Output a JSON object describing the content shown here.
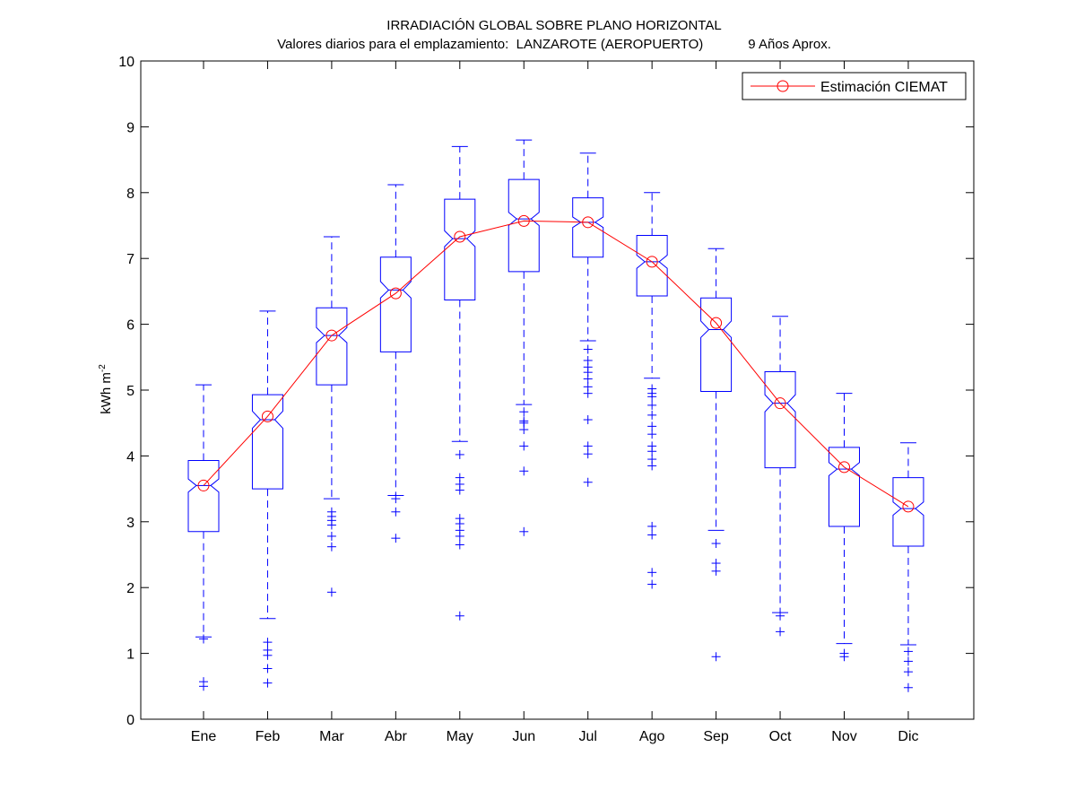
{
  "chart_data": {
    "type": "box",
    "title": "IRRADIACIÓN GLOBAL SOBRE PLANO HORIZONTAL",
    "subtitle": "Valores diarios para el emplazamiento:  LANZAROTE (AEROPUERTO)            9 Años Aprox.",
    "ylabel": "kWh m",
    "ylabel_exponent": "-2",
    "ylim": [
      0,
      10
    ],
    "yticks": [
      "0",
      "1",
      "2",
      "3",
      "4",
      "5",
      "6",
      "7",
      "8",
      "9",
      "10"
    ],
    "categories": [
      "Ene",
      "Feb",
      "Mar",
      "Abr",
      "May",
      "Jun",
      "Jul",
      "Ago",
      "Sep",
      "Oct",
      "Nov",
      "Dic"
    ],
    "box_color": "#0000ff",
    "line_color": "#ff0000",
    "boxes": [
      {
        "q1": 2.85,
        "median": 3.55,
        "q3": 3.93,
        "notch_lo": 3.45,
        "notch_hi": 3.65,
        "whisker_lo": 1.25,
        "whisker_hi": 5.08,
        "outliers": [
          0.5,
          0.57,
          1.22
        ]
      },
      {
        "q1": 3.5,
        "median": 4.55,
        "q3": 4.93,
        "notch_lo": 4.42,
        "notch_hi": 4.68,
        "whisker_lo": 1.53,
        "whisker_hi": 6.2,
        "outliers": [
          0.55,
          0.77,
          0.97,
          1.05,
          1.17
        ]
      },
      {
        "q1": 5.08,
        "median": 5.83,
        "q3": 6.25,
        "notch_lo": 5.72,
        "notch_hi": 5.95,
        "whisker_lo": 3.35,
        "whisker_hi": 7.33,
        "outliers": [
          1.93,
          2.62,
          2.78,
          2.95,
          3.02,
          3.08,
          3.15
        ]
      },
      {
        "q1": 5.58,
        "median": 6.52,
        "q3": 7.02,
        "notch_lo": 6.4,
        "notch_hi": 6.65,
        "whisker_lo": 3.4,
        "whisker_hi": 8.12,
        "outliers": [
          2.75,
          3.15,
          3.35
        ]
      },
      {
        "q1": 6.37,
        "median": 7.3,
        "q3": 7.9,
        "notch_lo": 7.18,
        "notch_hi": 7.42,
        "whisker_lo": 4.22,
        "whisker_hi": 8.7,
        "outliers": [
          1.57,
          2.65,
          2.78,
          2.87,
          2.97,
          3.05,
          3.48,
          3.57,
          3.67,
          4.02
        ]
      },
      {
        "q1": 6.8,
        "median": 7.6,
        "q3": 8.2,
        "notch_lo": 7.5,
        "notch_hi": 7.7,
        "whisker_lo": 4.78,
        "whisker_hi": 8.8,
        "outliers": [
          2.85,
          3.77,
          4.15,
          4.4,
          4.5,
          4.53,
          4.67
        ]
      },
      {
        "q1": 7.02,
        "median": 7.55,
        "q3": 7.92,
        "notch_lo": 7.47,
        "notch_hi": 7.63,
        "whisker_lo": 5.75,
        "whisker_hi": 8.6,
        "outliers": [
          3.6,
          4.03,
          4.15,
          4.55,
          4.95,
          5.05,
          5.17,
          5.27,
          5.35,
          5.45,
          5.62
        ]
      },
      {
        "q1": 6.43,
        "median": 6.95,
        "q3": 7.35,
        "notch_lo": 6.85,
        "notch_hi": 7.05,
        "whisker_lo": 5.18,
        "whisker_hi": 8.0,
        "outliers": [
          2.05,
          2.23,
          2.8,
          2.93,
          3.85,
          3.95,
          4.07,
          4.15,
          4.33,
          4.45,
          4.62,
          4.77,
          4.9,
          4.95,
          5.02
        ]
      },
      {
        "q1": 4.98,
        "median": 5.92,
        "q3": 6.4,
        "notch_lo": 5.8,
        "notch_hi": 6.05,
        "whisker_lo": 2.87,
        "whisker_hi": 7.15,
        "outliers": [
          0.95,
          2.25,
          2.37,
          2.67
        ]
      },
      {
        "q1": 3.82,
        "median": 4.8,
        "q3": 5.28,
        "notch_lo": 4.67,
        "notch_hi": 4.93,
        "whisker_lo": 1.62,
        "whisker_hi": 6.12,
        "outliers": [
          1.33,
          1.57
        ]
      },
      {
        "q1": 2.93,
        "median": 3.8,
        "q3": 4.13,
        "notch_lo": 3.7,
        "notch_hi": 3.9,
        "whisker_lo": 1.15,
        "whisker_hi": 4.95,
        "outliers": [
          0.95,
          1.0
        ]
      },
      {
        "q1": 2.63,
        "median": 3.2,
        "q3": 3.67,
        "notch_lo": 3.1,
        "notch_hi": 3.3,
        "whisker_lo": 1.13,
        "whisker_hi": 4.2,
        "outliers": [
          0.48,
          0.72,
          0.88,
          1.03
        ]
      }
    ],
    "series": [
      {
        "name": "Estimación CIEMAT",
        "values": [
          3.55,
          4.6,
          5.83,
          6.47,
          7.33,
          7.57,
          7.55,
          6.95,
          6.02,
          4.8,
          3.83,
          3.23
        ]
      }
    ],
    "legend_position": "top-right",
    "grid": false
  }
}
